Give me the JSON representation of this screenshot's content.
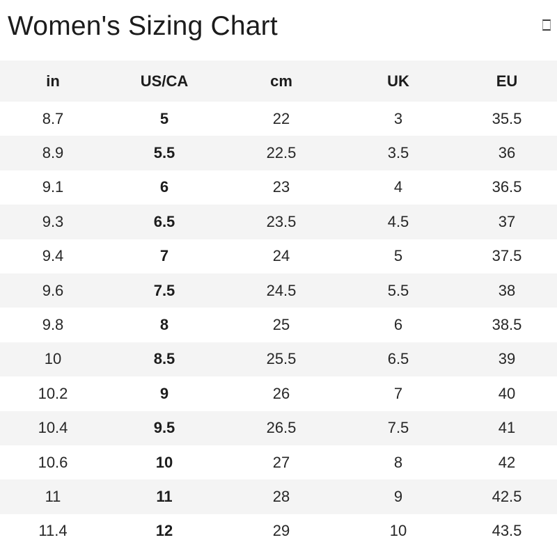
{
  "title": "Women's Sizing Chart",
  "header": {
    "close_icon": "unrendered-glyph-box"
  },
  "colors": {
    "background": "#ffffff",
    "stripe": "#f4f4f4",
    "header_row_bg": "#f4f4f4",
    "text": "#1c1c1c"
  },
  "chart_data": {
    "type": "table",
    "title": "Women's Sizing Chart",
    "columns": [
      "in",
      "US/CA",
      "cm",
      "UK",
      "EU"
    ],
    "column_widths_pct": [
      19,
      21,
      21,
      21,
      18
    ],
    "bold_column_index": 1,
    "striped": true,
    "rows": [
      [
        "8.7",
        "5",
        "22",
        "3",
        "35.5"
      ],
      [
        "8.9",
        "5.5",
        "22.5",
        "3.5",
        "36"
      ],
      [
        "9.1",
        "6",
        "23",
        "4",
        "36.5"
      ],
      [
        "9.3",
        "6.5",
        "23.5",
        "4.5",
        "37"
      ],
      [
        "9.4",
        "7",
        "24",
        "5",
        "37.5"
      ],
      [
        "9.6",
        "7.5",
        "24.5",
        "5.5",
        "38"
      ],
      [
        "9.8",
        "8",
        "25",
        "6",
        "38.5"
      ],
      [
        "10",
        "8.5",
        "25.5",
        "6.5",
        "39"
      ],
      [
        "10.2",
        "9",
        "26",
        "7",
        "40"
      ],
      [
        "10.4",
        "9.5",
        "26.5",
        "7.5",
        "41"
      ],
      [
        "10.6",
        "10",
        "27",
        "8",
        "42"
      ],
      [
        "11",
        "11",
        "28",
        "9",
        "42.5"
      ],
      [
        "11.4",
        "12",
        "29",
        "10",
        "43.5"
      ]
    ]
  }
}
